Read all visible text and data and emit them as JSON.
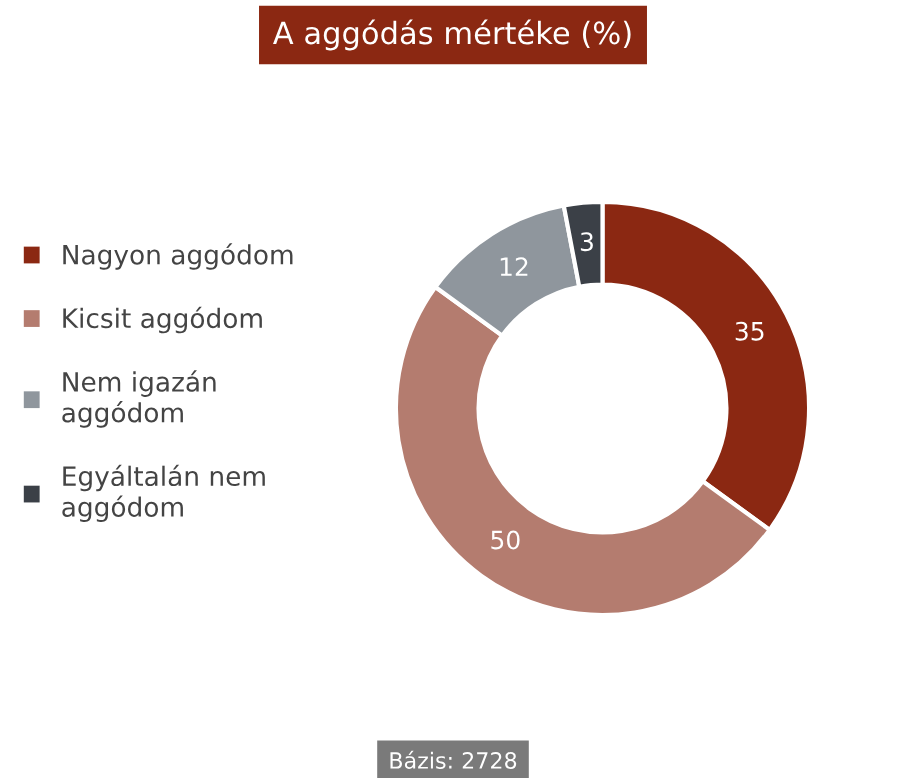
{
  "chart_data": {
    "type": "donut",
    "title": "A aggódás mértéke (%)",
    "categories": [
      "Nagyon aggódom",
      "Kicsit aggódom",
      "Nem igazán\naggódom",
      "Egyáltalán nem\naggódom"
    ],
    "values": [
      35,
      50,
      12,
      3
    ],
    "colors": [
      "#8b2812",
      "#b47c6f",
      "#8f969d",
      "#3b4047"
    ],
    "data_labels": true,
    "legend": "left",
    "annotations": [
      "Bázis: 2728"
    ]
  }
}
